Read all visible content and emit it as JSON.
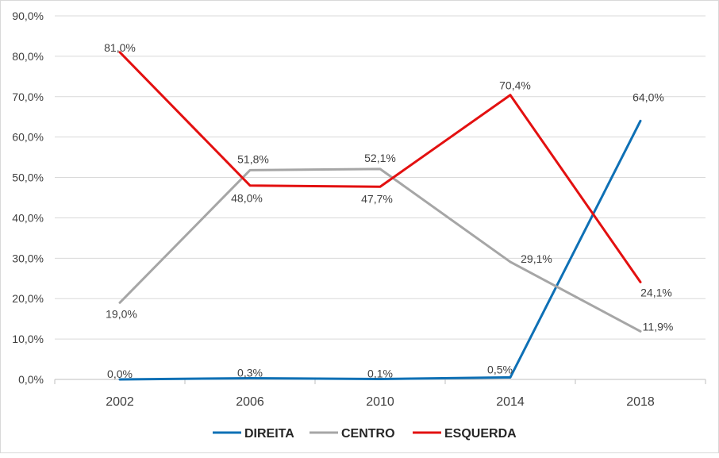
{
  "chart_data": {
    "type": "line",
    "categories": [
      "2002",
      "2006",
      "2010",
      "2014",
      "2018"
    ],
    "y_ticks": [
      "0,0%",
      "10,0%",
      "20,0%",
      "30,0%",
      "40,0%",
      "50,0%",
      "60,0%",
      "70,0%",
      "80,0%",
      "90,0%"
    ],
    "ylim": [
      0,
      90
    ],
    "grid": true,
    "legend_position": "bottom",
    "series": [
      {
        "name": "DIREITA",
        "color": "#0E70B5",
        "values": [
          0.0,
          0.3,
          0.1,
          0.5,
          64.0
        ],
        "labels": [
          "0,0%",
          "0,3%",
          "0,1%",
          "0,5%",
          "64,0%"
        ]
      },
      {
        "name": "CENTRO",
        "color": "#A6A6A6",
        "values": [
          19.0,
          51.8,
          52.1,
          29.1,
          11.9
        ],
        "labels": [
          "19,0%",
          "51,8%",
          "52,1%",
          "29,1%",
          "11,9%"
        ]
      },
      {
        "name": "ESQUERDA",
        "color": "#E31010",
        "values": [
          81.0,
          48.0,
          47.7,
          70.4,
          24.1
        ],
        "labels": [
          "81,0%",
          "48,0%",
          "47,7%",
          "70,4%",
          "24,1%"
        ]
      }
    ]
  }
}
